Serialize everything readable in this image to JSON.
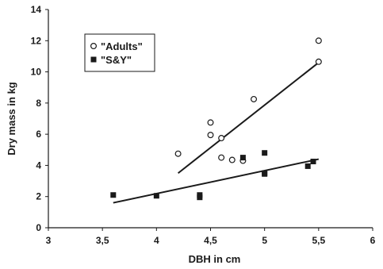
{
  "chart_data": {
    "type": "scatter",
    "xlabel": "DBH in cm",
    "ylabel": "Dry mass in kg",
    "xlim": [
      3,
      6
    ],
    "ylim": [
      0,
      14
    ],
    "x_ticks": [
      "3",
      "3,5",
      "4",
      "4,5",
      "5",
      "5,5",
      "6"
    ],
    "y_ticks": [
      "0",
      "2",
      "4",
      "6",
      "8",
      "10",
      "12",
      "14"
    ],
    "grid": false,
    "legend_position": "top-left",
    "series": [
      {
        "name": "\"Adults\"",
        "marker": "open-circle",
        "points": [
          [
            4.2,
            4.75
          ],
          [
            4.5,
            6.75
          ],
          [
            4.5,
            5.95
          ],
          [
            4.6,
            5.75
          ],
          [
            4.6,
            4.5
          ],
          [
            4.7,
            4.35
          ],
          [
            4.8,
            4.3
          ],
          [
            4.9,
            8.25
          ],
          [
            5.5,
            12.0
          ],
          [
            5.5,
            10.65
          ]
        ],
        "trendline": [
          [
            4.2,
            3.5
          ],
          [
            5.5,
            10.6
          ]
        ]
      },
      {
        "name": "\"S&Y\"",
        "marker": "filled-square",
        "points": [
          [
            3.6,
            2.1
          ],
          [
            4.0,
            2.05
          ],
          [
            4.4,
            2.1
          ],
          [
            4.4,
            1.95
          ],
          [
            4.8,
            4.5
          ],
          [
            5.0,
            3.5
          ],
          [
            5.0,
            3.45
          ],
          [
            5.0,
            4.8
          ],
          [
            5.4,
            3.95
          ],
          [
            5.45,
            4.25
          ]
        ],
        "trendline": [
          [
            3.6,
            1.6
          ],
          [
            5.5,
            4.4
          ]
        ]
      }
    ]
  },
  "colors": {
    "ink": "#1a1a1a",
    "background": "#ffffff"
  }
}
